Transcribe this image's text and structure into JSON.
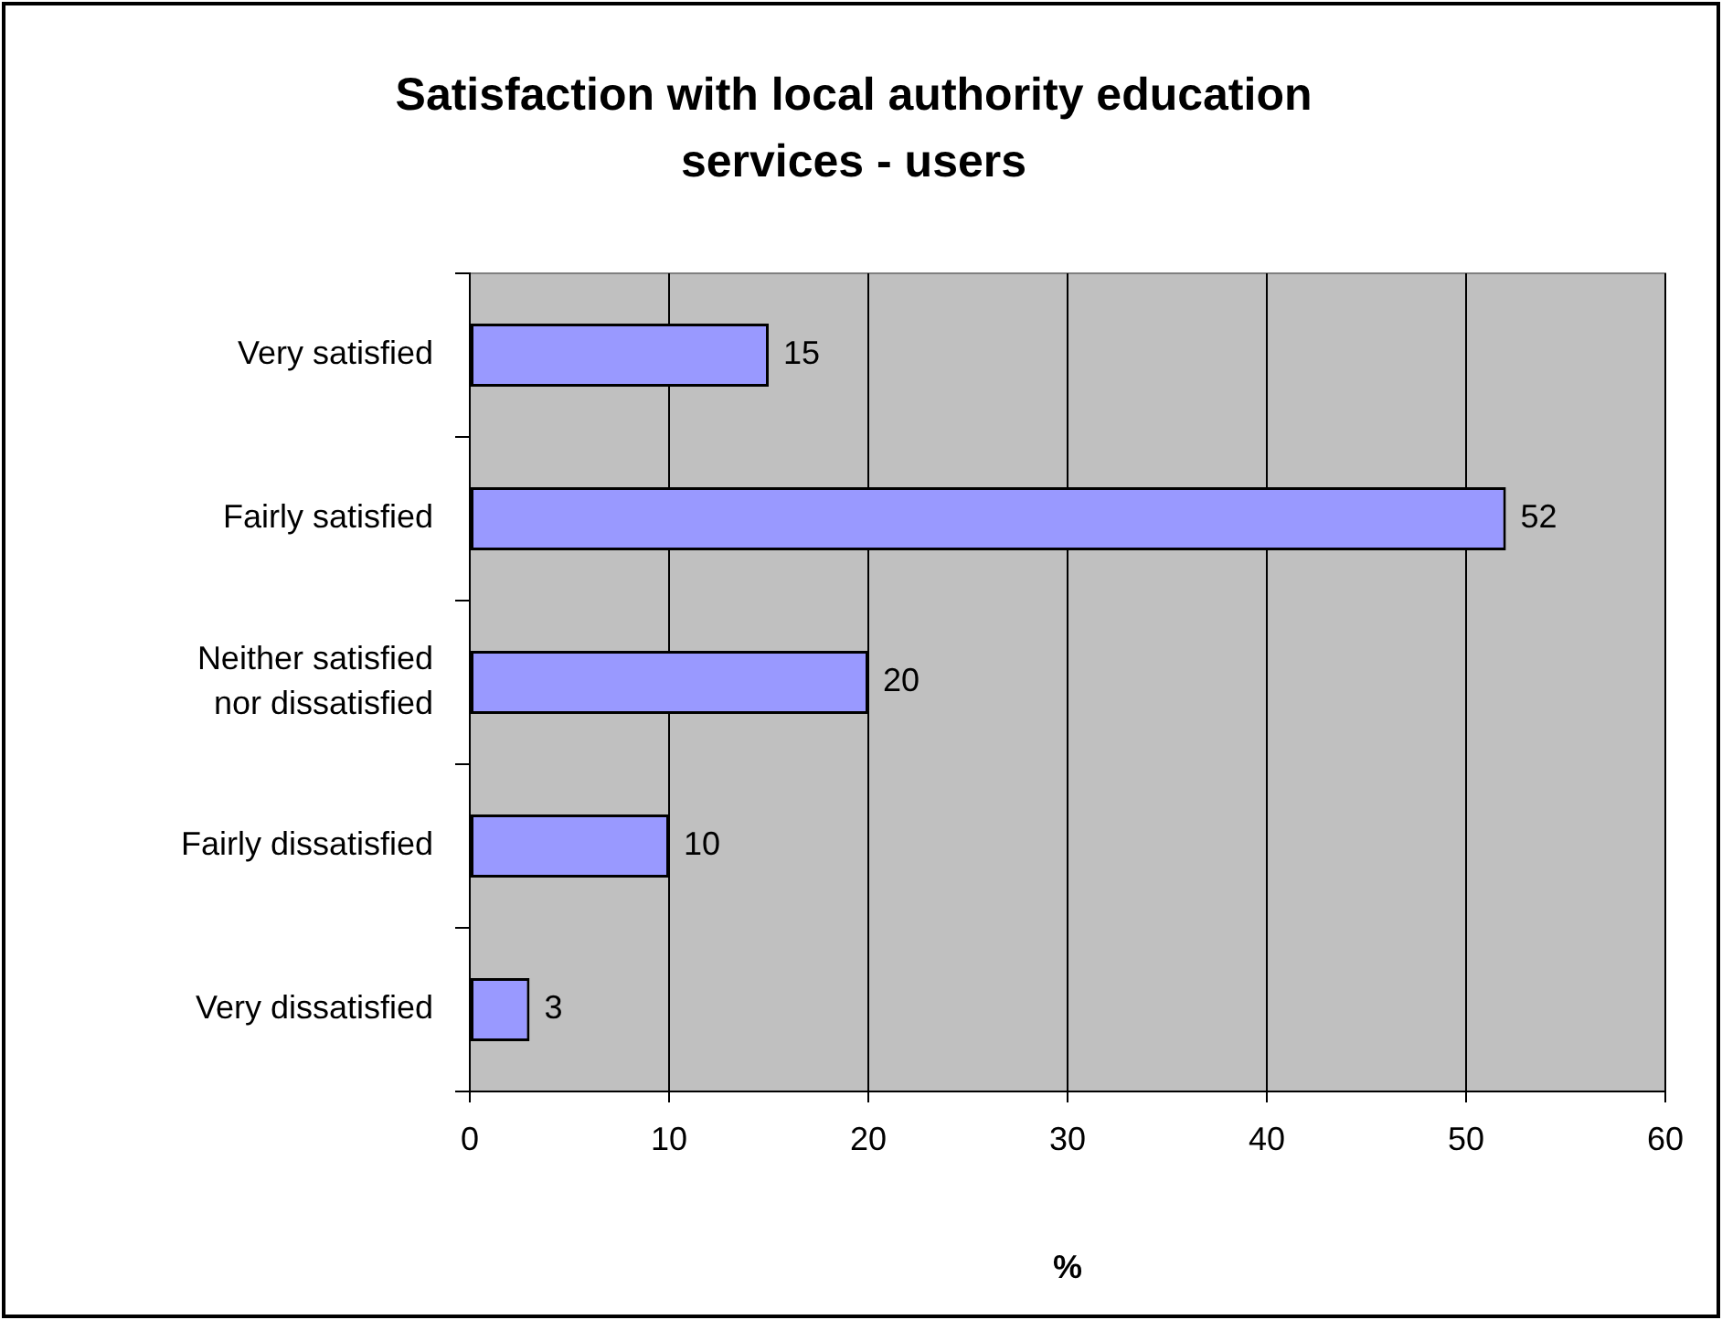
{
  "chart_data": {
    "type": "bar",
    "orientation": "horizontal",
    "title": "Satisfaction with local authority education services - users",
    "xlabel": "%",
    "categories": [
      "Very satisfied",
      "Fairly satisfied",
      "Neither satisfied nor dissatisfied",
      "Fairly dissatisfied",
      "Very dissatisfied"
    ],
    "values": [
      15,
      52,
      20,
      10,
      3
    ],
    "color": "#9999ff",
    "xlim": [
      0,
      60
    ],
    "xticks": [
      0,
      10,
      20,
      30,
      40,
      50,
      60
    ],
    "grid": "x",
    "data_labels": true,
    "legend": false
  }
}
